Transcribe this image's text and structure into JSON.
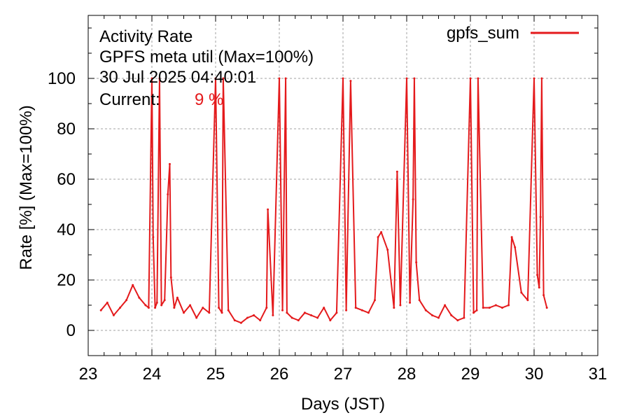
{
  "chart_data": {
    "type": "line",
    "title_lines": [
      "Activity Rate",
      "GPFS meta util (Max=100%)",
      "30 Jul 2025 04:40:01"
    ],
    "current": {
      "label": "Current:",
      "value": "9 %"
    },
    "xlabel": "Days (JST)",
    "ylabel": "Rate [%]  (Max=100%)",
    "xlim": [
      23,
      31
    ],
    "ylim": [
      -10,
      125
    ],
    "x_ticks": [
      23,
      24,
      25,
      26,
      27,
      28,
      29,
      30,
      31
    ],
    "y_ticks": [
      0,
      20,
      40,
      60,
      80,
      100
    ],
    "grid": true,
    "legend_position": "top-right",
    "colors": {
      "series": "#e41a1c",
      "grid": "#a0a0a0",
      "axis": "#000000"
    },
    "series": [
      {
        "name": "gpfs_sum",
        "x": [
          23.2,
          23.3,
          23.4,
          23.5,
          23.6,
          23.7,
          23.8,
          23.9,
          23.95,
          24.0,
          24.02,
          24.05,
          24.08,
          24.12,
          24.15,
          24.2,
          24.25,
          24.28,
          24.3,
          24.35,
          24.4,
          24.5,
          24.6,
          24.7,
          24.8,
          24.9,
          25.0,
          25.05,
          25.1,
          25.12,
          25.2,
          25.3,
          25.4,
          25.5,
          25.6,
          25.7,
          25.8,
          25.82,
          25.9,
          26.0,
          26.05,
          26.1,
          26.12,
          26.2,
          26.3,
          26.4,
          26.5,
          26.6,
          26.7,
          26.8,
          26.9,
          27.0,
          27.05,
          27.12,
          27.2,
          27.3,
          27.4,
          27.5,
          27.55,
          27.6,
          27.7,
          27.8,
          27.85,
          27.9,
          28.0,
          28.05,
          28.1,
          28.12,
          28.15,
          28.2,
          28.3,
          28.4,
          28.5,
          28.6,
          28.7,
          28.8,
          28.9,
          29.0,
          29.05,
          29.1,
          29.12,
          29.2,
          29.3,
          29.4,
          29.5,
          29.6,
          29.65,
          29.7,
          29.8,
          29.9,
          30.0,
          30.05,
          30.08,
          30.1,
          30.12,
          30.15,
          30.2
        ],
        "y": [
          8,
          11,
          6,
          9,
          12,
          18,
          13,
          10,
          9,
          100,
          37,
          9,
          11,
          100,
          10,
          12,
          54,
          66,
          21,
          9,
          13,
          7,
          10,
          5,
          9,
          7,
          100,
          9,
          7,
          100,
          8,
          4,
          3,
          5,
          6,
          4,
          9,
          48,
          6,
          100,
          8,
          100,
          7,
          5,
          4,
          7,
          6,
          5,
          9,
          4,
          7,
          100,
          8,
          99,
          9,
          8,
          7,
          12,
          37,
          39,
          32,
          9,
          63,
          10,
          100,
          11,
          52,
          100,
          27,
          12,
          8,
          6,
          5,
          10,
          6,
          4,
          5,
          100,
          7,
          8,
          100,
          9,
          9,
          10,
          9,
          10,
          37,
          33,
          15,
          12,
          100,
          22,
          17,
          45,
          100,
          14,
          9
        ]
      }
    ]
  }
}
